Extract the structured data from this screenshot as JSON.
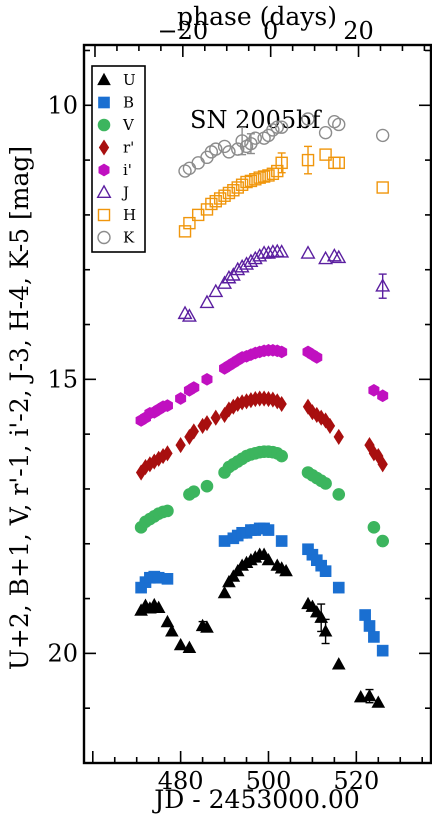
{
  "chart_data": {
    "type": "scatter",
    "annotation": "SN 2005bf",
    "xlabel": "JD - 2453000.00",
    "x2label": "phase (days)",
    "ylabel": "U+2, B+1, V, r'-1, i'-2, J-3, H-4, K-5 [mag]",
    "xlim": [
      458,
      537
    ],
    "ylim": [
      22.0,
      8.9
    ],
    "x_ticks": [
      "480",
      "500",
      "520"
    ],
    "x_tick_values": [
      480,
      500,
      520
    ],
    "x2_ticks": [
      "−20",
      "0",
      "20"
    ],
    "x2_tick_values": [
      -20,
      0,
      20
    ],
    "x2_offset": 500.5,
    "y_ticks": [
      "10",
      "15",
      "20"
    ],
    "y_tick_values": [
      10,
      15,
      20
    ],
    "grid": false,
    "legend_position": "top-left",
    "series": [
      {
        "name": "U",
        "color": "#000000",
        "marker": "triangle",
        "filled": true,
        "x": [
          471.0,
          472.0,
          473.0,
          474.0,
          475.0,
          477.0,
          478.0,
          480.0,
          482.0,
          485.0,
          486.0,
          490.0,
          491.0,
          492.0,
          493.0,
          494.0,
          495.0,
          496.0,
          497.0,
          498.0,
          499.0,
          500.0,
          502.0,
          503.0,
          504.0,
          509.0,
          510.0,
          511.0,
          512.0,
          513.0,
          516.0,
          521.0,
          523.0,
          525.0
        ],
        "y": [
          19.22,
          19.13,
          19.18,
          19.12,
          19.17,
          19.43,
          19.6,
          19.85,
          19.9,
          19.5,
          19.53,
          18.9,
          18.7,
          18.6,
          18.5,
          18.4,
          18.35,
          18.3,
          18.25,
          18.2,
          18.2,
          18.3,
          18.4,
          18.45,
          18.5,
          19.1,
          19.15,
          19.25,
          19.35,
          19.6,
          20.2,
          20.8,
          20.78,
          20.9
        ]
      },
      {
        "name": "B",
        "color": "#1a6fd1",
        "marker": "square",
        "filled": true,
        "x": [
          471.0,
          472.0,
          473.0,
          474.0,
          475.0,
          477.0,
          490.0,
          492.0,
          493.0,
          494.0,
          495.0,
          496.0,
          497.0,
          498.0,
          499.0,
          500.0,
          503.0,
          509.0,
          510.0,
          511.0,
          512.0,
          513.0,
          516.0,
          522.0,
          523.0,
          524.0,
          526.0
        ],
        "y": [
          18.8,
          18.7,
          18.62,
          18.6,
          18.62,
          18.64,
          17.95,
          17.9,
          17.85,
          17.8,
          17.8,
          17.75,
          17.75,
          17.72,
          17.72,
          17.75,
          17.95,
          18.1,
          18.2,
          18.3,
          18.4,
          18.5,
          18.8,
          19.3,
          19.5,
          19.7,
          19.95
        ]
      },
      {
        "name": "V",
        "color": "#3cb55e",
        "marker": "circle",
        "filled": true,
        "x": [
          471.0,
          472.0,
          473.0,
          474.0,
          475.0,
          476.0,
          477.0,
          482.0,
          483.0,
          486.0,
          490.0,
          491.0,
          492.0,
          493.0,
          494.0,
          495.0,
          496.0,
          497.0,
          498.0,
          499.0,
          500.0,
          501.0,
          502.0,
          503.0,
          509.0,
          510.0,
          511.0,
          512.0,
          513.0,
          516.0,
          524.0,
          526.0
        ],
        "y": [
          17.7,
          17.6,
          17.55,
          17.5,
          17.45,
          17.42,
          17.4,
          17.1,
          17.05,
          16.95,
          16.7,
          16.6,
          16.55,
          16.5,
          16.45,
          16.4,
          16.37,
          16.35,
          16.33,
          16.32,
          16.32,
          16.33,
          16.35,
          16.4,
          16.7,
          16.75,
          16.8,
          16.85,
          16.9,
          17.1,
          17.7,
          17.95
        ]
      },
      {
        "name": "r'",
        "color": "#a80f0f",
        "marker": "diamond",
        "filled": true,
        "x": [
          471.0,
          472.0,
          473.0,
          474.0,
          475.0,
          476.0,
          477.0,
          480.0,
          482.0,
          483.0,
          485.0,
          486.0,
          488.0,
          490.0,
          491.0,
          492.0,
          493.0,
          494.0,
          495.0,
          496.0,
          497.0,
          498.0,
          499.0,
          500.0,
          501.0,
          502.0,
          503.0,
          509.0,
          510.0,
          511.0,
          512.0,
          513.0,
          514.0,
          516.0,
          523.0,
          524.0,
          525.0,
          526.0
        ],
        "y": [
          16.7,
          16.6,
          16.55,
          16.5,
          16.45,
          16.4,
          16.35,
          16.2,
          16.05,
          15.95,
          15.85,
          15.8,
          15.7,
          15.65,
          15.55,
          15.5,
          15.45,
          15.42,
          15.4,
          15.38,
          15.36,
          15.35,
          15.35,
          15.36,
          15.37,
          15.4,
          15.45,
          15.5,
          15.6,
          15.65,
          15.7,
          15.75,
          15.85,
          16.05,
          16.2,
          16.35,
          16.4,
          16.55
        ]
      },
      {
        "name": "i'",
        "color": "#c010c0",
        "marker": "hexagon",
        "filled": true,
        "x": [
          471.0,
          472.0,
          473.0,
          474.0,
          475.0,
          476.0,
          477.0,
          480.0,
          482.0,
          483.0,
          486.0,
          490.0,
          491.0,
          492.0,
          493.0,
          494.0,
          495.0,
          496.0,
          497.0,
          498.0,
          499.0,
          500.0,
          501.0,
          502.0,
          503.0,
          509.0,
          510.0,
          511.0,
          524.0,
          526.0
        ],
        "y": [
          15.75,
          15.7,
          15.62,
          15.6,
          15.55,
          15.5,
          15.48,
          15.35,
          15.2,
          15.15,
          15.0,
          14.8,
          14.75,
          14.7,
          14.65,
          14.6,
          14.58,
          14.55,
          14.52,
          14.5,
          14.48,
          14.47,
          14.47,
          14.48,
          14.5,
          14.5,
          14.55,
          14.6,
          15.2,
          15.3
        ]
      },
      {
        "name": "J",
        "color": "#5b1fa0",
        "marker": "triangle",
        "filled": false,
        "x": [
          481.0,
          482.0,
          486.0,
          488.0,
          490.0,
          491.0,
          492.0,
          493.0,
          494.0,
          495.0,
          496.0,
          497.0,
          498.0,
          499.0,
          500.0,
          501.0,
          502.0,
          503.0,
          509.0,
          513.0,
          515.0,
          516.0,
          526.0
        ],
        "y": [
          13.8,
          13.85,
          13.6,
          13.4,
          13.25,
          13.15,
          13.1,
          13.0,
          12.95,
          12.9,
          12.85,
          12.8,
          12.75,
          12.7,
          12.7,
          12.68,
          12.67,
          12.68,
          12.7,
          12.8,
          12.75,
          12.78,
          13.3
        ]
      },
      {
        "name": "H",
        "color": "#f0960c",
        "marker": "square",
        "filled": false,
        "x": [
          481.0,
          482.0,
          484.0,
          486.0,
          487.0,
          488.0,
          489.0,
          490.0,
          491.0,
          492.0,
          493.0,
          494.0,
          495.0,
          496.0,
          497.0,
          498.0,
          499.0,
          500.0,
          501.0,
          502.0,
          503.0,
          509.0,
          513.0,
          515.0,
          516.0,
          526.0
        ],
        "y": [
          12.3,
          12.15,
          12.0,
          11.9,
          11.8,
          11.75,
          11.7,
          11.65,
          11.6,
          11.55,
          11.5,
          11.45,
          11.4,
          11.38,
          11.35,
          11.32,
          11.3,
          11.28,
          11.25,
          11.2,
          11.05,
          11.0,
          10.9,
          11.05,
          11.05,
          11.5
        ]
      },
      {
        "name": "K",
        "color": "#8c8c8c",
        "marker": "circle",
        "filled": false,
        "x": [
          481.0,
          482.0,
          484.0,
          486.0,
          487.0,
          488.0,
          490.0,
          491.0,
          493.0,
          494.0,
          495.0,
          496.0,
          497.0,
          499.0,
          500.0,
          501.0,
          502.0,
          503.0,
          509.0,
          513.0,
          515.0,
          516.0,
          526.0
        ],
        "y": [
          11.2,
          11.15,
          11.05,
          10.95,
          10.85,
          10.8,
          10.75,
          10.85,
          10.8,
          10.65,
          10.75,
          10.7,
          10.6,
          10.6,
          10.55,
          10.45,
          10.4,
          10.4,
          10.25,
          10.5,
          10.3,
          10.35,
          10.55
        ]
      }
    ],
    "error_bars": [
      {
        "series": "U",
        "x": 512.0,
        "y": 19.35,
        "err": 0.25
      },
      {
        "series": "U",
        "x": 513.0,
        "y": 19.6,
        "err": 0.22
      },
      {
        "series": "U",
        "x": 523.0,
        "y": 20.78,
        "err": 0.12
      },
      {
        "series": "U",
        "x": 485.0,
        "y": 19.5,
        "err": 0.08
      },
      {
        "series": "K",
        "x": 494.0,
        "y": 10.65,
        "err": 0.25
      },
      {
        "series": "K",
        "x": 496.0,
        "y": 10.7,
        "err": 0.18
      },
      {
        "series": "H",
        "x": 503.0,
        "y": 11.05,
        "err": 0.18
      },
      {
        "series": "H",
        "x": 509.0,
        "y": 11.0,
        "err": 0.25
      },
      {
        "series": "J",
        "x": 526.0,
        "y": 13.3,
        "err": 0.22
      }
    ]
  }
}
